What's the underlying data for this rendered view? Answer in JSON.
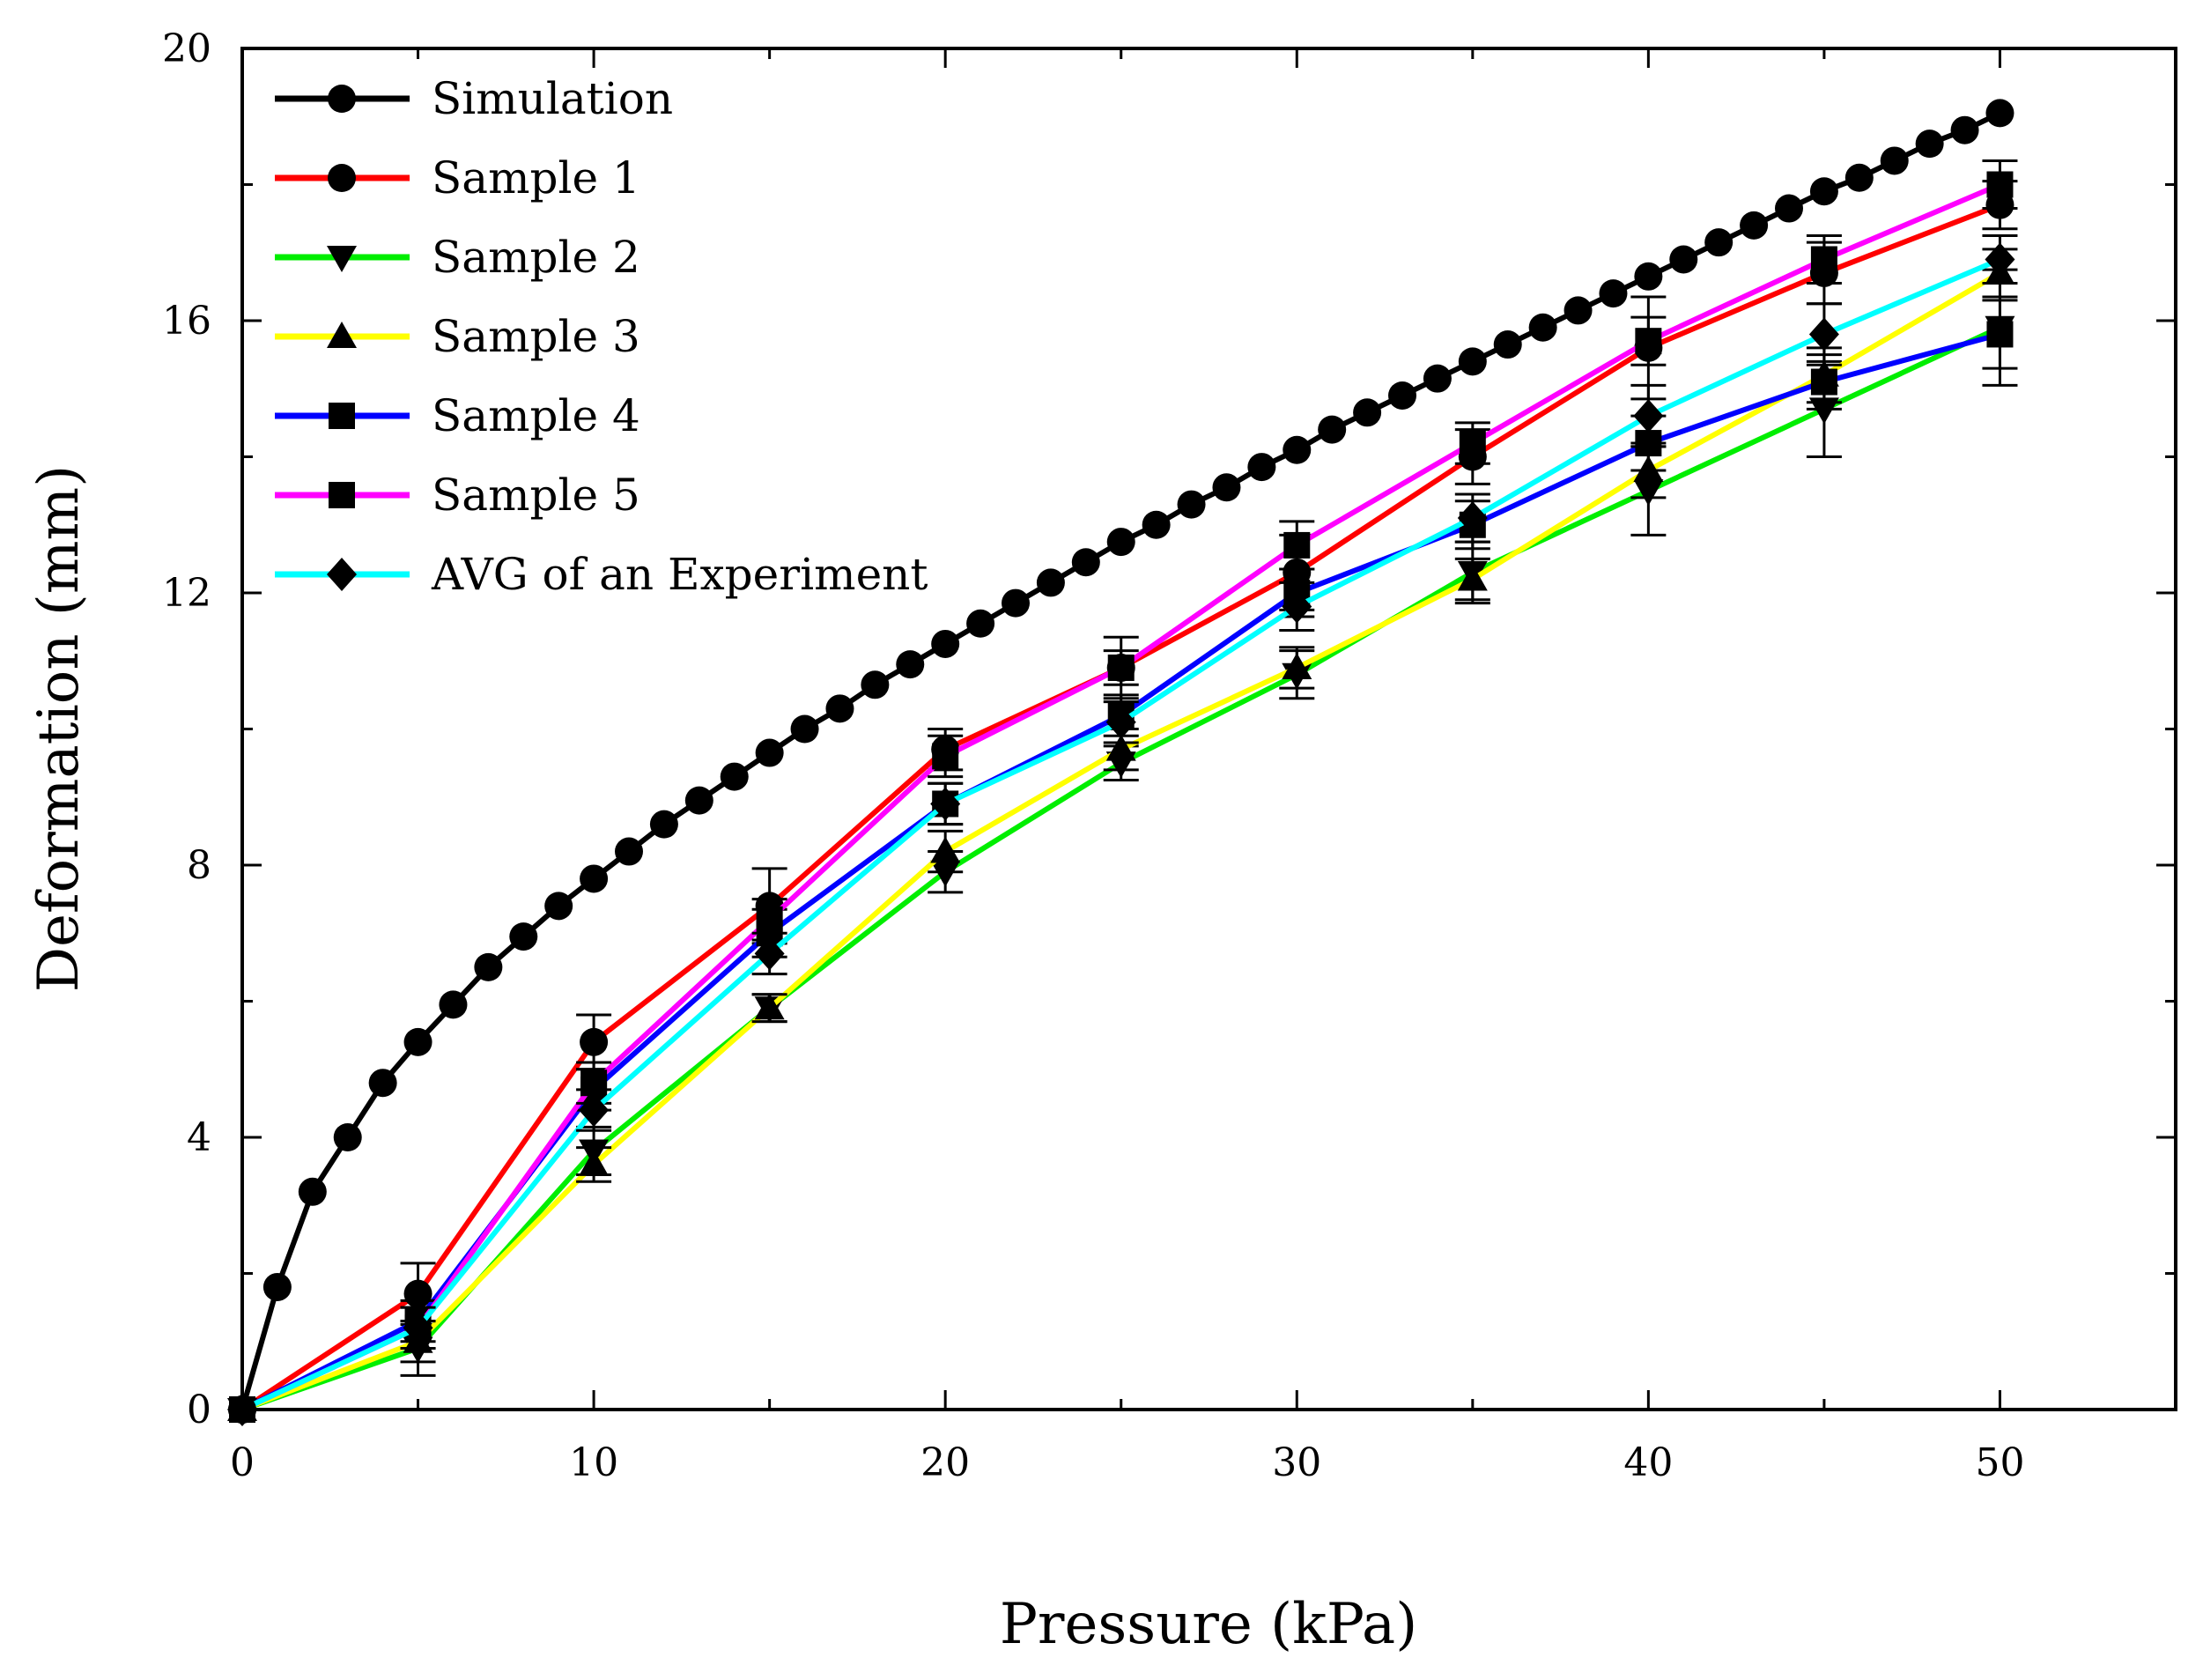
{
  "chart_data": {
    "type": "line",
    "title": "",
    "xlabel": "Pressure (kPa)",
    "ylabel": "Deformation (mm)",
    "xlim": [
      0,
      55
    ],
    "ylim": [
      0,
      20
    ],
    "xticks": [
      0,
      10,
      20,
      30,
      40,
      50
    ],
    "yticks": [
      0,
      4,
      8,
      12,
      16,
      20
    ],
    "xtick_labels": [
      "0",
      "10",
      "20",
      "30",
      "40",
      "50"
    ],
    "ytick_labels": [
      "0",
      "4",
      "8",
      "12",
      "16",
      "20"
    ],
    "grid": false,
    "legend_position": "top-left",
    "series": [
      {
        "name": "Simulation",
        "color": "#000000",
        "marker": "circle",
        "x": [
          0,
          1,
          2,
          3,
          4,
          5,
          6,
          7,
          8,
          9,
          10,
          11,
          12,
          13,
          14,
          15,
          16,
          17,
          18,
          19,
          20,
          21,
          22,
          23,
          24,
          25,
          26,
          27,
          28,
          29,
          30,
          31,
          32,
          33,
          34,
          35,
          36,
          37,
          38,
          39,
          40,
          41,
          42,
          43,
          44,
          45,
          46,
          47,
          48,
          49,
          50
        ],
        "y": [
          0,
          1.8,
          3.2,
          4.0,
          4.8,
          5.4,
          5.95,
          6.5,
          6.95,
          7.4,
          7.8,
          8.2,
          8.6,
          8.95,
          9.3,
          9.65,
          10.0,
          10.3,
          10.65,
          10.95,
          11.25,
          11.55,
          11.85,
          12.15,
          12.45,
          12.75,
          13.0,
          13.3,
          13.55,
          13.85,
          14.1,
          14.4,
          14.65,
          14.9,
          15.15,
          15.4,
          15.65,
          15.9,
          16.15,
          16.4,
          16.65,
          16.9,
          17.15,
          17.4,
          17.65,
          17.9,
          18.1,
          18.35,
          18.6,
          18.8,
          19.05
        ]
      },
      {
        "name": "Sample 1",
        "color": "#ff0000",
        "marker": "circle",
        "x": [
          0,
          5,
          10,
          15,
          20,
          25,
          30,
          35,
          40,
          45,
          50
        ],
        "y": [
          0,
          1.7,
          5.4,
          7.4,
          9.7,
          10.9,
          12.3,
          14.0,
          15.6,
          16.7,
          17.7
        ],
        "yerr": [
          0,
          0.45,
          0.4,
          0.55,
          0.3,
          0.45,
          0.55,
          0.4,
          0.75,
          0.45,
          0.35
        ]
      },
      {
        "name": "Sample 2",
        "color": "#00ee00",
        "marker": "triangle-down",
        "x": [
          0,
          5,
          10,
          15,
          20,
          25,
          30,
          35,
          40,
          45,
          50
        ],
        "y": [
          0,
          0.9,
          3.8,
          5.9,
          7.9,
          9.5,
          10.8,
          12.3,
          13.5,
          14.7,
          15.9
        ],
        "yerr": [
          0,
          0.4,
          0.35,
          0.2,
          0.3,
          0.25,
          0.35,
          0.45,
          0.65,
          0.7,
          0.85
        ]
      },
      {
        "name": "Sample 3",
        "color": "#ffff00",
        "marker": "triangle-up",
        "x": [
          0,
          5,
          10,
          15,
          20,
          25,
          30,
          35,
          40,
          45,
          50
        ],
        "y": [
          0,
          1.0,
          3.6,
          5.9,
          8.2,
          9.7,
          10.9,
          12.2,
          13.8,
          15.2,
          16.7
        ],
        "yerr": [
          0,
          0.3,
          0.25,
          0.2,
          0.3,
          0.3,
          0.3,
          0.3,
          0.4,
          0.4,
          0.35
        ]
      },
      {
        "name": "Sample 4",
        "color": "#0000ff",
        "marker": "square",
        "x": [
          0,
          5,
          10,
          15,
          20,
          25,
          30,
          35,
          40,
          45,
          50
        ],
        "y": [
          0,
          1.3,
          4.7,
          7.0,
          8.9,
          10.2,
          12.0,
          13.0,
          14.2,
          15.1,
          15.8
        ],
        "yerr": [
          0,
          0.3,
          0.3,
          0.35,
          0.3,
          0.3,
          0.35,
          0.35,
          0.4,
          0.4,
          0.5
        ]
      },
      {
        "name": "Sample 5",
        "color": "#ff00ff",
        "marker": "square",
        "x": [
          0,
          5,
          10,
          15,
          20,
          25,
          30,
          35,
          40,
          45,
          50
        ],
        "y": [
          0,
          1.2,
          4.8,
          7.2,
          9.6,
          10.9,
          12.7,
          14.2,
          15.7,
          16.9,
          18.0
        ],
        "yerr": [
          0,
          0.3,
          0.3,
          0.3,
          0.3,
          0.25,
          0.35,
          0.3,
          0.35,
          0.35,
          0.35
        ]
      },
      {
        "name": "AVG of an Experiment",
        "color": "#00ffff",
        "marker": "diamond",
        "x": [
          0,
          5,
          10,
          15,
          20,
          25,
          30,
          35,
          40,
          45,
          50
        ],
        "y": [
          0,
          1.2,
          4.4,
          6.7,
          8.9,
          10.1,
          11.8,
          13.1,
          14.6,
          15.8,
          16.9
        ],
        "yerr": [
          0,
          0.3,
          0.3,
          0.3,
          0.3,
          0.3,
          0.35,
          0.35,
          0.45,
          0.45,
          0.35
        ]
      }
    ]
  }
}
